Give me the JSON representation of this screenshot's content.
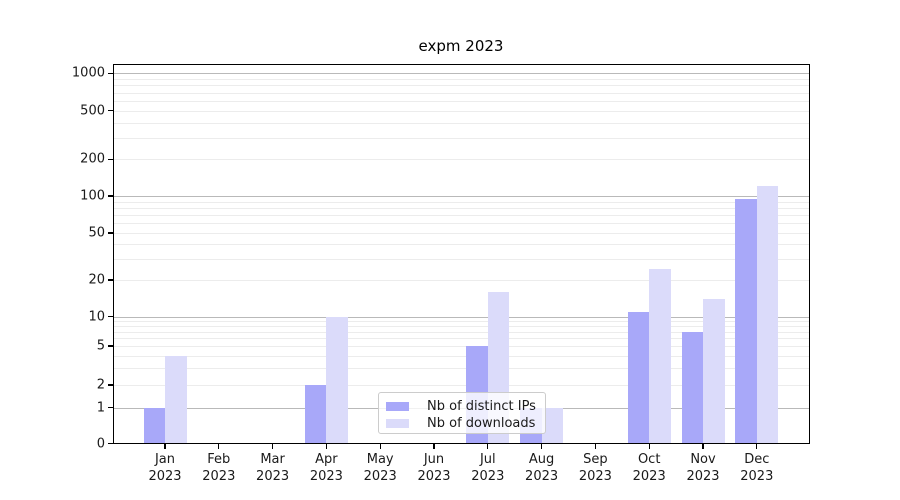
{
  "title": "expm 2023",
  "chart_data": {
    "type": "bar",
    "title": "expm 2023",
    "categories": [
      "Jan",
      "Feb",
      "Mar",
      "Apr",
      "May",
      "Jun",
      "Jul",
      "Aug",
      "Sep",
      "Oct",
      "Nov",
      "Dec"
    ],
    "year_label": "2023",
    "series": [
      {
        "name": "Nb of distinct IPs",
        "color": "#a8a8f9",
        "values": [
          1,
          0,
          0,
          2,
          0,
          0,
          5,
          1,
          0,
          11,
          7,
          95
        ]
      },
      {
        "name": "Nb of downloads",
        "color": "#dbdbfa",
        "values": [
          4,
          0,
          0,
          10,
          0,
          0,
          16,
          1,
          0,
          25,
          14,
          120
        ]
      }
    ],
    "yticks": [
      0,
      1,
      2,
      5,
      10,
      20,
      50,
      100,
      200,
      500,
      1000
    ],
    "yscale": "log-like (symlog with linear 0-1 segment)",
    "ylim": [
      0,
      1200
    ],
    "grid": "horizontal, major lines at powers of 10, faint minor lines",
    "legend_position": "inside bottom-center",
    "bar_layout": "two bars per month, side by side, no gap"
  },
  "colors": {
    "bar_distinct_ips": "#a8a8f9",
    "bar_downloads": "#dbdbfa",
    "grid_major": "#b9b9b9",
    "grid_minor": "#ececec",
    "axis": "#000000",
    "background": "#ffffff"
  }
}
